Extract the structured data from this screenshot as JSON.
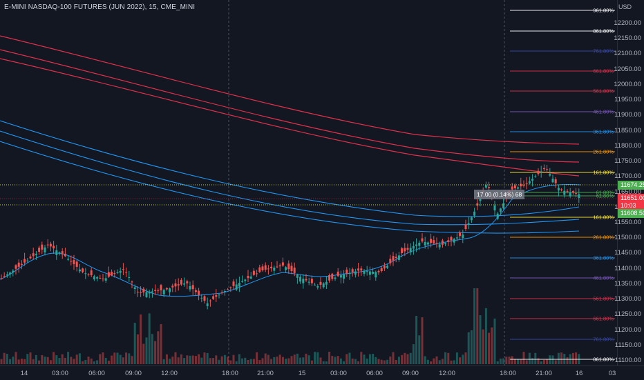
{
  "chart": {
    "title": "E-MINI NASDAQ-100 FUTURES (JUN 2022), 15, CME_MINI",
    "currency": "USD",
    "price_ticks": [
      "12200.00",
      "12150.00",
      "12100.00",
      "12050.00",
      "12000.00",
      "11950.00",
      "11900.00",
      "11850.00",
      "11800.00",
      "11750.00",
      "11700.00",
      "11650.00",
      "11600.00",
      "11550.00",
      "11500.00",
      "11450.00",
      "11400.00",
      "11350.00",
      "11300.00",
      "11250.00",
      "11200.00",
      "11150.00",
      "11100.00"
    ],
    "time_ticks": [
      "14",
      "03:00",
      "06:00",
      "09:00",
      "12:00",
      "18:00",
      "21:00",
      "15",
      "03:00",
      "06:00",
      "09:00",
      "12:00",
      "18:00",
      "21:00",
      "16",
      "03"
    ],
    "tags": {
      "upper": "11674.25",
      "last_price": "11651.00",
      "countdown": "10:03",
      "lower": "11608.50"
    },
    "measure_label": "17.00 (0.14%) 68",
    "fib_labels": [
      "961.80%",
      "861.80%",
      "761.80%",
      "661.80%",
      "561.80%",
      "461.80%",
      "361.80%",
      "261.80%",
      "161.80%",
      "61.80%",
      "61.80%",
      "161.80%",
      "261.80%",
      "361.80%",
      "461.80%",
      "561.80%",
      "661.80%",
      "761.80%",
      "861.80%"
    ],
    "colors": {
      "bg": "#131722",
      "up": "#26a69a",
      "down": "#ef5350",
      "ema": "#2196f3",
      "red_band": "#e0314b",
      "tag_green": "#4caf50",
      "tag_red": "#f23645"
    }
  }
}
